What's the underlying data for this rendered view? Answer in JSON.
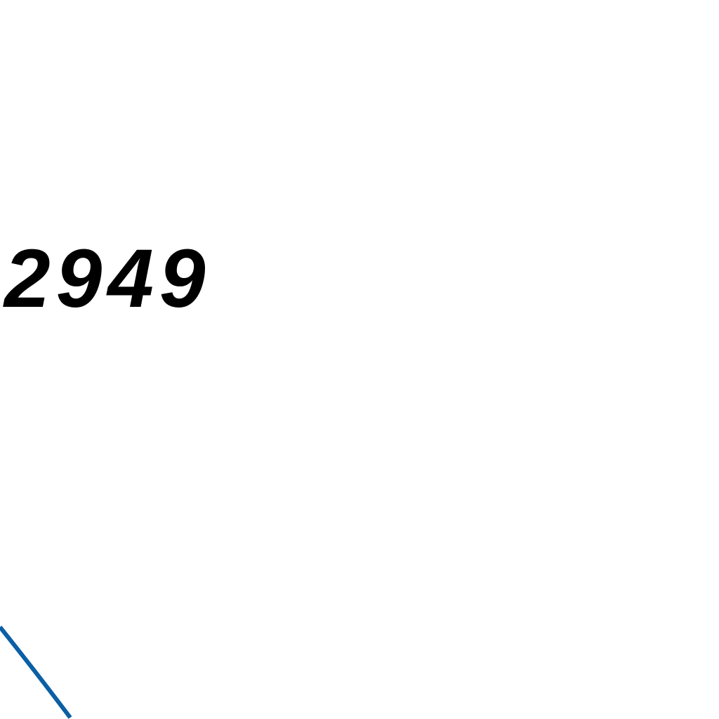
{
  "label": {
    "value": "2949"
  },
  "colors": {
    "background": "#ffffff",
    "text": "#000000",
    "arc": "#0b5fa5"
  }
}
